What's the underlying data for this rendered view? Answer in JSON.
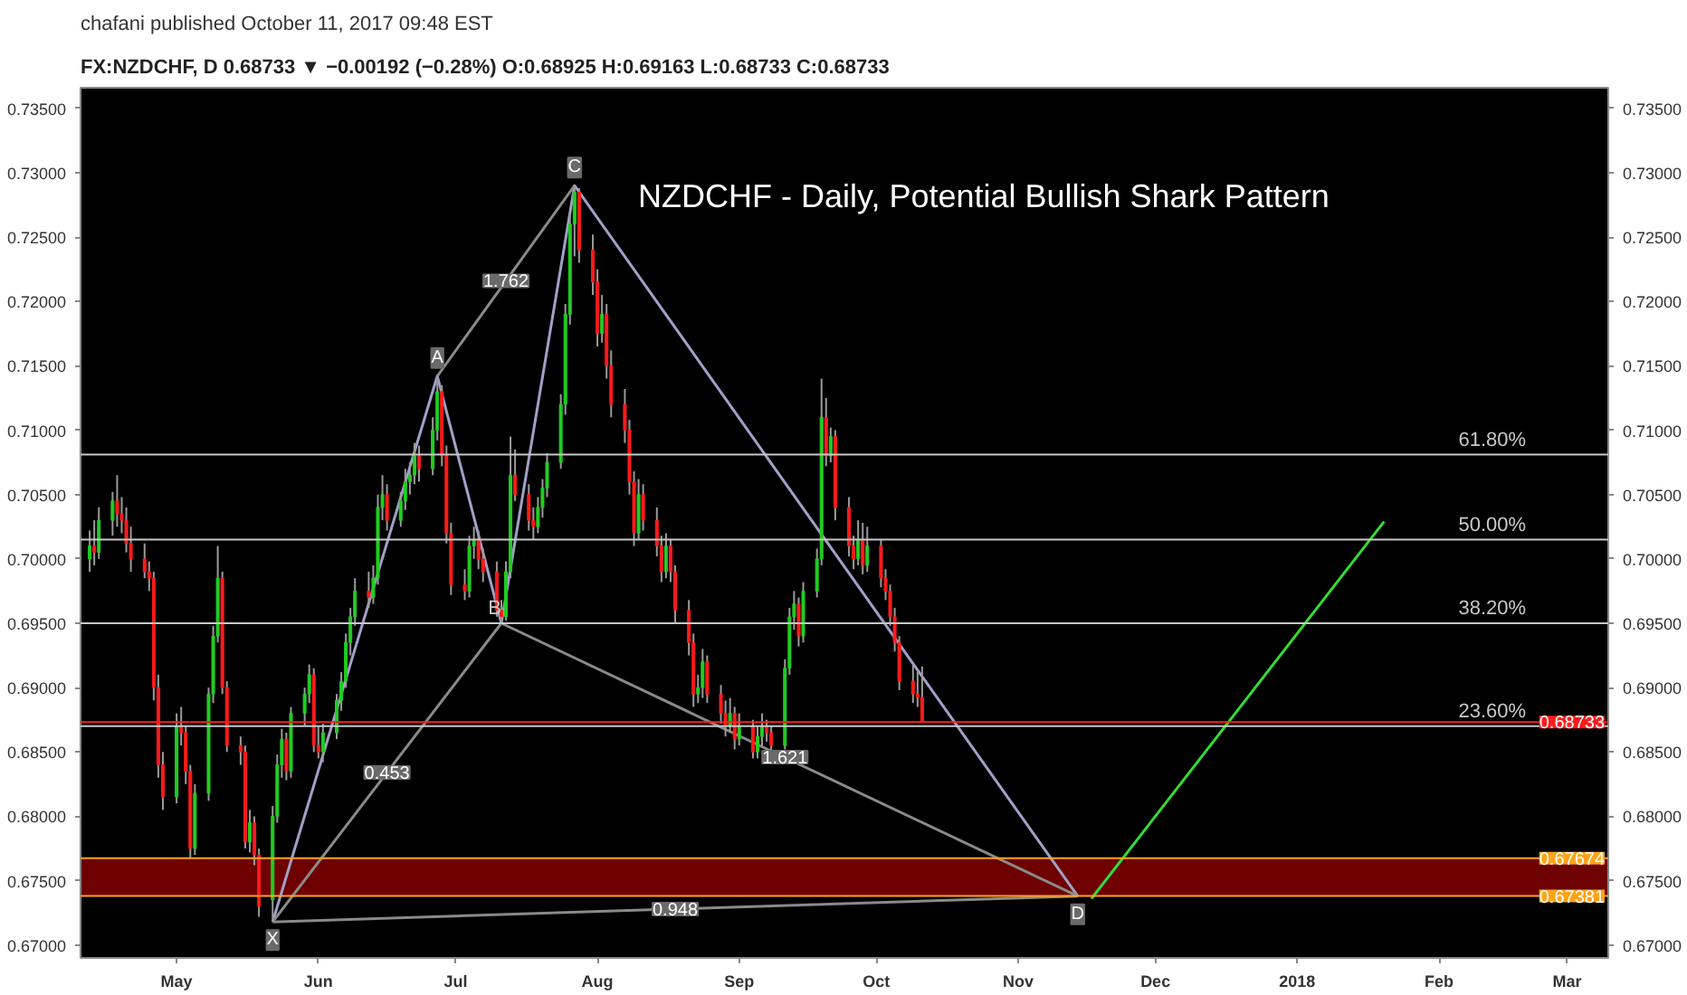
{
  "chart_data": {
    "type": "candlestick",
    "title": "NZDCHF - Daily, Potential Bullish Shark Pattern",
    "subtitle": "FX:NZDCHF, D 0.68733 ▼ −0.00192 (−0.28%) O:0.68925 H:0.69163 L:0.68733 C:0.68733",
    "annotations": [
      "chafani published October 11, 2017 09:48 EST",
      {
        "text": "X",
        "x": "2017-05-22",
        "y": 0.6718
      },
      {
        "text": "A",
        "x": "2017-06-27",
        "y": 0.7142
      },
      {
        "text": "B",
        "x": "2017-07-11",
        "y": 0.695
      },
      {
        "text": "C",
        "x": "2017-07-27",
        "y": 0.729
      },
      {
        "text": "D",
        "x": "2017-11-14",
        "y": 0.6738
      },
      {
        "text": "0.453",
        "x": "2017-06-16",
        "y": 0.6834
      },
      {
        "text": "1.762",
        "x": "2017-07-12",
        "y": 0.7216
      },
      {
        "text": "1.621",
        "x": "2017-09-11",
        "y": 0.6846
      },
      {
        "text": "0.948",
        "x": "2017-08-18",
        "y": 0.6728
      },
      {
        "text": "61.80%",
        "x": "2018-02-20",
        "y": 0.7081
      },
      {
        "text": "50.00%",
        "x": "2018-02-20",
        "y": 0.7015
      },
      {
        "text": "38.20%",
        "x": "2018-02-20",
        "y": 0.695
      },
      {
        "text": "23.60%",
        "x": "2018-02-20",
        "y": 0.687
      }
    ],
    "x": [
      "2017-04-12",
      "2017-04-13",
      "2017-04-14",
      "2017-04-17",
      "2017-04-18",
      "2017-04-19",
      "2017-04-20",
      "2017-04-21",
      "2017-04-24",
      "2017-04-25",
      "2017-04-26",
      "2017-04-27",
      "2017-04-28",
      "2017-05-01",
      "2017-05-02",
      "2017-05-03",
      "2017-05-04",
      "2017-05-05",
      "2017-05-08",
      "2017-05-09",
      "2017-05-10",
      "2017-05-11",
      "2017-05-12",
      "2017-05-15",
      "2017-05-16",
      "2017-05-17",
      "2017-05-18",
      "2017-05-19",
      "2017-05-22",
      "2017-05-23",
      "2017-05-24",
      "2017-05-25",
      "2017-05-26",
      "2017-05-29",
      "2017-05-30",
      "2017-05-31",
      "2017-06-01",
      "2017-06-02",
      "2017-06-05",
      "2017-06-06",
      "2017-06-07",
      "2017-06-08",
      "2017-06-09",
      "2017-06-12",
      "2017-06-13",
      "2017-06-14",
      "2017-06-15",
      "2017-06-16",
      "2017-06-19",
      "2017-06-20",
      "2017-06-21",
      "2017-06-22",
      "2017-06-23",
      "2017-06-26",
      "2017-06-27",
      "2017-06-28",
      "2017-06-29",
      "2017-06-30",
      "2017-07-03",
      "2017-07-04",
      "2017-07-05",
      "2017-07-06",
      "2017-07-07",
      "2017-07-10",
      "2017-07-11",
      "2017-07-12",
      "2017-07-13",
      "2017-07-14",
      "2017-07-17",
      "2017-07-18",
      "2017-07-19",
      "2017-07-20",
      "2017-07-21",
      "2017-07-24",
      "2017-07-25",
      "2017-07-26",
      "2017-07-27",
      "2017-07-28",
      "2017-07-31",
      "2017-08-01",
      "2017-08-02",
      "2017-08-03",
      "2017-08-04",
      "2017-08-07",
      "2017-08-08",
      "2017-08-09",
      "2017-08-10",
      "2017-08-11",
      "2017-08-14",
      "2017-08-15",
      "2017-08-16",
      "2017-08-17",
      "2017-08-18",
      "2017-08-21",
      "2017-08-22",
      "2017-08-23",
      "2017-08-24",
      "2017-08-25",
      "2017-08-28",
      "2017-08-29",
      "2017-08-30",
      "2017-08-31",
      "2017-09-01",
      "2017-09-04",
      "2017-09-05",
      "2017-09-06",
      "2017-09-07",
      "2017-09-08",
      "2017-09-11",
      "2017-09-12",
      "2017-09-13",
      "2017-09-14",
      "2017-09-15",
      "2017-09-18",
      "2017-09-19",
      "2017-09-20",
      "2017-09-21",
      "2017-09-22",
      "2017-09-25",
      "2017-09-26",
      "2017-09-27",
      "2017-09-28",
      "2017-09-29",
      "2017-10-02",
      "2017-10-03",
      "2017-10-04",
      "2017-10-05",
      "2017-10-06",
      "2017-10-09",
      "2017-10-10",
      "2017-10-11"
    ],
    "ohlc": [
      [
        0.7,
        0.7022,
        0.699,
        0.701
      ],
      [
        0.701,
        0.703,
        0.6995,
        0.7005
      ],
      [
        0.7005,
        0.704,
        0.7,
        0.703
      ],
      [
        0.703,
        0.7052,
        0.7018,
        0.7045
      ],
      [
        0.7045,
        0.7065,
        0.7025,
        0.7035
      ],
      [
        0.7035,
        0.7048,
        0.702,
        0.703
      ],
      [
        0.703,
        0.704,
        0.7005,
        0.7012
      ],
      [
        0.7012,
        0.7025,
        0.699,
        0.7
      ],
      [
        0.7,
        0.7012,
        0.6985,
        0.699
      ],
      [
        0.699,
        0.6998,
        0.6975,
        0.6985
      ],
      [
        0.6985,
        0.699,
        0.689,
        0.69
      ],
      [
        0.69,
        0.691,
        0.683,
        0.684
      ],
      [
        0.684,
        0.685,
        0.6805,
        0.6815
      ],
      [
        0.6815,
        0.688,
        0.681,
        0.687
      ],
      [
        0.687,
        0.6885,
        0.6855,
        0.6865
      ],
      [
        0.6865,
        0.687,
        0.6825,
        0.6835
      ],
      [
        0.6835,
        0.684,
        0.6768,
        0.6775
      ],
      [
        0.6775,
        0.6825,
        0.677,
        0.6818
      ],
      [
        0.6818,
        0.69,
        0.6812,
        0.6895
      ],
      [
        0.6895,
        0.6948,
        0.6888,
        0.694
      ],
      [
        0.694,
        0.701,
        0.6935,
        0.6985
      ],
      [
        0.6985,
        0.699,
        0.6895,
        0.69
      ],
      [
        0.69,
        0.6905,
        0.685,
        0.6855
      ],
      [
        0.6855,
        0.6862,
        0.684,
        0.685
      ],
      [
        0.685,
        0.6855,
        0.6775,
        0.678
      ],
      [
        0.678,
        0.6805,
        0.6772,
        0.6795
      ],
      [
        0.6795,
        0.68,
        0.6762,
        0.677
      ],
      [
        0.677,
        0.6775,
        0.6722,
        0.673
      ],
      [
        0.6735,
        0.6808,
        0.6718,
        0.68
      ],
      [
        0.68,
        0.6848,
        0.6795,
        0.684
      ],
      [
        0.684,
        0.6868,
        0.683,
        0.686
      ],
      [
        0.686,
        0.6865,
        0.6828,
        0.6835
      ],
      [
        0.6835,
        0.6885,
        0.683,
        0.688
      ],
      [
        0.688,
        0.69,
        0.687,
        0.6895
      ],
      [
        0.6895,
        0.6918,
        0.6888,
        0.691
      ],
      [
        0.691,
        0.6915,
        0.685,
        0.6855
      ],
      [
        0.6855,
        0.687,
        0.6845,
        0.685
      ],
      [
        0.685,
        0.6872,
        0.6842,
        0.6865
      ],
      [
        0.6865,
        0.6895,
        0.686,
        0.689
      ],
      [
        0.689,
        0.6912,
        0.6882,
        0.6905
      ],
      [
        0.6905,
        0.6942,
        0.69,
        0.6935
      ],
      [
        0.6935,
        0.6962,
        0.6925,
        0.6955
      ],
      [
        0.6955,
        0.6985,
        0.6948,
        0.6975
      ],
      [
        0.6975,
        0.699,
        0.6962,
        0.697
      ],
      [
        0.697,
        0.6995,
        0.6965,
        0.6985
      ],
      [
        0.6985,
        0.705,
        0.698,
        0.704
      ],
      [
        0.704,
        0.7065,
        0.703,
        0.705
      ],
      [
        0.705,
        0.7058,
        0.7022,
        0.703
      ],
      [
        0.703,
        0.7052,
        0.7025,
        0.7045
      ],
      [
        0.7045,
        0.707,
        0.7038,
        0.706
      ],
      [
        0.706,
        0.7075,
        0.705,
        0.7065
      ],
      [
        0.7065,
        0.709,
        0.7058,
        0.708
      ],
      [
        0.708,
        0.7088,
        0.706,
        0.707
      ],
      [
        0.707,
        0.711,
        0.7065,
        0.71
      ],
      [
        0.71,
        0.7142,
        0.7092,
        0.713
      ],
      [
        0.713,
        0.7135,
        0.7072,
        0.708
      ],
      [
        0.708,
        0.7088,
        0.7012,
        0.702
      ],
      [
        0.702,
        0.7028,
        0.6972,
        0.698
      ],
      [
        0.698,
        0.6992,
        0.6968,
        0.6975
      ],
      [
        0.6975,
        0.7018,
        0.697,
        0.701
      ],
      [
        0.701,
        0.7025,
        0.7,
        0.7015
      ],
      [
        0.7015,
        0.7022,
        0.6992,
        0.7
      ],
      [
        0.7,
        0.7008,
        0.6982,
        0.699
      ],
      [
        0.699,
        0.6998,
        0.6955,
        0.696
      ],
      [
        0.696,
        0.6968,
        0.695,
        0.6955
      ],
      [
        0.6955,
        0.6998,
        0.6952,
        0.699
      ],
      [
        0.699,
        0.7095,
        0.6985,
        0.7065
      ],
      [
        0.7065,
        0.7085,
        0.7045,
        0.705
      ],
      [
        0.705,
        0.7058,
        0.7022,
        0.703
      ],
      [
        0.703,
        0.704,
        0.7015,
        0.7025
      ],
      [
        0.7025,
        0.7048,
        0.702,
        0.704
      ],
      [
        0.704,
        0.7062,
        0.7032,
        0.7055
      ],
      [
        0.7055,
        0.7082,
        0.7048,
        0.7075
      ],
      [
        0.7075,
        0.7128,
        0.707,
        0.712
      ],
      [
        0.712,
        0.7198,
        0.7112,
        0.719
      ],
      [
        0.719,
        0.7268,
        0.7182,
        0.726
      ],
      [
        0.726,
        0.729,
        0.7235,
        0.7285
      ],
      [
        0.7285,
        0.7288,
        0.723,
        0.724
      ],
      [
        0.724,
        0.7252,
        0.7205,
        0.7215
      ],
      [
        0.7215,
        0.7225,
        0.7165,
        0.7175
      ],
      [
        0.7175,
        0.7205,
        0.7168,
        0.719
      ],
      [
        0.719,
        0.7198,
        0.714,
        0.715
      ],
      [
        0.715,
        0.7162,
        0.711,
        0.712
      ],
      [
        0.712,
        0.7132,
        0.709,
        0.71
      ],
      [
        0.71,
        0.7108,
        0.705,
        0.706
      ],
      [
        0.706,
        0.7068,
        0.701,
        0.702
      ],
      [
        0.702,
        0.7062,
        0.7015,
        0.705
      ],
      [
        0.705,
        0.7058,
        0.7022,
        0.703
      ],
      [
        0.703,
        0.704,
        0.7002,
        0.701
      ],
      [
        0.701,
        0.7018,
        0.6982,
        0.699
      ],
      [
        0.699,
        0.702,
        0.6985,
        0.701
      ],
      [
        0.701,
        0.7015,
        0.6982,
        0.699
      ],
      [
        0.699,
        0.6995,
        0.695,
        0.696
      ],
      [
        0.696,
        0.6968,
        0.6925,
        0.6935
      ],
      [
        0.6935,
        0.6942,
        0.6885,
        0.6895
      ],
      [
        0.6895,
        0.691,
        0.6888,
        0.69
      ],
      [
        0.69,
        0.693,
        0.6892,
        0.692
      ],
      [
        0.692,
        0.6925,
        0.6888,
        0.6895
      ],
      [
        0.6895,
        0.6902,
        0.6872,
        0.688
      ],
      [
        0.688,
        0.689,
        0.6862,
        0.687
      ],
      [
        0.687,
        0.6892,
        0.6865,
        0.688
      ],
      [
        0.688,
        0.6885,
        0.6852,
        0.686
      ],
      [
        0.686,
        0.688,
        0.6855,
        0.687
      ],
      [
        0.687,
        0.6875,
        0.6845,
        0.685
      ],
      [
        0.685,
        0.687,
        0.6845,
        0.6862
      ],
      [
        0.6862,
        0.688,
        0.6855,
        0.687
      ],
      [
        0.687,
        0.6875,
        0.6858,
        0.6865
      ],
      [
        0.6865,
        0.687,
        0.685,
        0.6855
      ],
      [
        0.6855,
        0.6922,
        0.6852,
        0.6915
      ],
      [
        0.6915,
        0.6962,
        0.691,
        0.6955
      ],
      [
        0.6955,
        0.6975,
        0.6945,
        0.6965
      ],
      [
        0.6965,
        0.697,
        0.6932,
        0.694
      ],
      [
        0.694,
        0.6982,
        0.6935,
        0.6975
      ],
      [
        0.6975,
        0.7008,
        0.697,
        0.7
      ],
      [
        0.7,
        0.714,
        0.6995,
        0.711
      ],
      [
        0.711,
        0.7125,
        0.7072,
        0.708
      ],
      [
        0.708,
        0.7102,
        0.7075,
        0.7095
      ],
      [
        0.7095,
        0.71,
        0.703,
        0.704
      ],
      [
        0.704,
        0.7048,
        0.7002,
        0.701
      ],
      [
        0.701,
        0.7018,
        0.6992,
        0.7
      ],
      [
        0.7,
        0.703,
        0.6995,
        0.7015
      ],
      [
        0.7015,
        0.7028,
        0.6988,
        0.6995
      ],
      [
        0.6995,
        0.7025,
        0.699,
        0.701
      ],
      [
        0.701,
        0.7015,
        0.6978,
        0.6985
      ],
      [
        0.6985,
        0.6992,
        0.6968,
        0.6975
      ],
      [
        0.6975,
        0.698,
        0.6948,
        0.6955
      ],
      [
        0.6955,
        0.6962,
        0.6928,
        0.6935
      ],
      [
        0.6935,
        0.694,
        0.6898,
        0.6905
      ],
      [
        0.6905,
        0.6918,
        0.6888,
        0.6895
      ],
      [
        0.6895,
        0.6912,
        0.6885,
        0.68925
      ],
      [
        0.68925,
        0.69163,
        0.68733,
        0.68733
      ]
    ],
    "series": [
      {
        "type": "line",
        "x": [
          "2017-05-22",
          "2017-06-27",
          "2017-07-11",
          "2017-07-27",
          "2017-11-14"
        ],
        "values": [
          0.6718,
          0.7142,
          0.695,
          0.729,
          0.6738
        ],
        "color": "#a0a0c8"
      },
      {
        "type": "line",
        "x": [
          "2017-05-22",
          "2017-07-11"
        ],
        "values": [
          0.6718,
          0.695
        ],
        "color": "#8a8a8a"
      },
      {
        "type": "line",
        "x": [
          "2017-06-27",
          "2017-07-27"
        ],
        "values": [
          0.7142,
          0.729
        ],
        "color": "#8a8a8a"
      },
      {
        "type": "line",
        "x": [
          "2017-07-11",
          "2017-11-14"
        ],
        "values": [
          0.695,
          0.6738
        ],
        "color": "#8a8a8a"
      },
      {
        "type": "line",
        "x": [
          "2017-05-22",
          "2017-11-14"
        ],
        "values": [
          0.6718,
          0.6738
        ],
        "color": "#8a8a8a"
      },
      {
        "type": "line",
        "x": [
          "2017-11-17",
          "2018-01-20"
        ],
        "values": [
          0.6736,
          0.7029
        ],
        "color": "#33dd33"
      }
    ],
    "ref_lines": [
      {
        "axis": "y",
        "value": 0.7081,
        "color": "#c8c8c8"
      },
      {
        "axis": "y",
        "value": 0.7015,
        "color": "#c8c8c8"
      },
      {
        "axis": "y",
        "value": 0.695,
        "color": "#c8c8c8"
      },
      {
        "axis": "y",
        "value": 0.687,
        "color": "#c8c8c8"
      },
      {
        "axis": "y",
        "value": 0.68733,
        "label": "0.68733",
        "color": "#ff1c1c"
      },
      {
        "axis": "y",
        "value": 0.67674,
        "label": "0.67674",
        "color": "#ffa31a"
      },
      {
        "axis": "y",
        "value": 0.67381,
        "label": "0.67381",
        "color": "#ffa31a"
      }
    ],
    "bands": [
      {
        "axis": "y",
        "from": 0.67381,
        "to": 0.67674,
        "color": "#7a0000"
      }
    ],
    "xlim": [
      "2017-04-10",
      "2018-03-10"
    ],
    "xticks": [
      {
        "value": "2017-05-01",
        "label": "May"
      },
      {
        "value": "2017-06-01",
        "label": "Jun"
      },
      {
        "value": "2017-07-01",
        "label": "Jul"
      },
      {
        "value": "2017-08-01",
        "label": "Aug"
      },
      {
        "value": "2017-09-01",
        "label": "Sep"
      },
      {
        "value": "2017-10-01",
        "label": "Oct"
      },
      {
        "value": "2017-11-01",
        "label": "Nov"
      },
      {
        "value": "2017-12-01",
        "label": "Dec"
      },
      {
        "value": "2018-01-01",
        "label": "2018"
      },
      {
        "value": "2018-02-01",
        "label": "Feb"
      },
      {
        "value": "2018-03-01",
        "label": "Mar"
      }
    ],
    "ylim": [
      0.669,
      0.7366
    ],
    "yticks": [
      {
        "value": 0.67,
        "label": "0.67000"
      },
      {
        "value": 0.675,
        "label": "0.67500"
      },
      {
        "value": 0.68,
        "label": "0.68000"
      },
      {
        "value": 0.685,
        "label": "0.68500"
      },
      {
        "value": 0.69,
        "label": "0.69000"
      },
      {
        "value": 0.695,
        "label": "0.69500"
      },
      {
        "value": 0.7,
        "label": "0.70000"
      },
      {
        "value": 0.705,
        "label": "0.70500"
      },
      {
        "value": 0.71,
        "label": "0.71000"
      },
      {
        "value": 0.715,
        "label": "0.71500"
      },
      {
        "value": 0.72,
        "label": "0.72000"
      },
      {
        "value": 0.725,
        "label": "0.72500"
      },
      {
        "value": 0.73,
        "label": "0.73000"
      },
      {
        "value": 0.735,
        "label": "0.73500"
      }
    ],
    "y2lim": [
      0.669,
      0.7366
    ],
    "y2ticks": [
      {
        "value": 0.67,
        "label": "0.67000"
      },
      {
        "value": 0.675,
        "label": "0.67500"
      },
      {
        "value": 0.68,
        "label": "0.68000"
      },
      {
        "value": 0.685,
        "label": "0.68500"
      },
      {
        "value": 0.69,
        "label": "0.69000"
      },
      {
        "value": 0.695,
        "label": "0.69500"
      },
      {
        "value": 0.7,
        "label": "0.70000"
      },
      {
        "value": 0.705,
        "label": "0.70500"
      },
      {
        "value": 0.71,
        "label": "0.71000"
      },
      {
        "value": 0.715,
        "label": "0.71500"
      },
      {
        "value": 0.72,
        "label": "0.72000"
      },
      {
        "value": 0.725,
        "label": "0.72500"
      },
      {
        "value": 0.73,
        "label": "0.73000"
      },
      {
        "value": 0.735,
        "label": "0.73500"
      }
    ],
    "grid": false
  }
}
